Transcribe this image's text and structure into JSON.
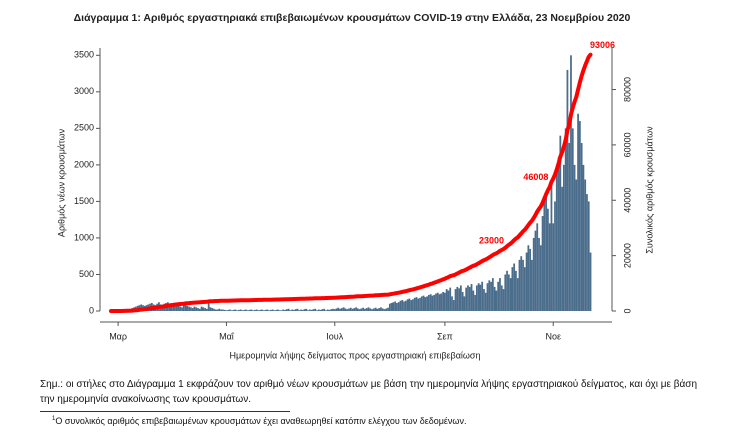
{
  "chart_data": {
    "type": "bar",
    "title": "Διάγραμμα 1: Αριθμός εργαστηριακά επιβεβαιωμένων κρουσμάτων COVID-19 στην Ελλάδα, 23 Νοεμβρίου 2020",
    "xlabel": "Ημερομηνία λήψης δείγματος προς εργαστηριακή επιβεβαίωση",
    "ylabel": "Αριθμός νέων κρουσμάτων",
    "y2label": "Συνολικός αριθμός κρουσμάτων",
    "categories": [
      null,
      null,
      null,
      null,
      "Μαρ",
      null,
      null,
      null,
      null,
      null,
      null,
      null,
      null,
      null,
      null,
      null,
      null,
      null,
      null,
      null,
      null,
      null,
      null,
      null,
      null,
      null,
      null,
      null,
      null,
      null,
      null,
      null,
      null,
      null,
      null,
      null,
      null,
      null,
      null,
      null,
      null,
      null,
      null,
      null,
      null,
      null,
      null,
      null,
      null,
      null,
      null,
      null,
      null,
      null,
      null,
      null,
      null,
      null,
      null,
      null,
      null,
      null,
      null,
      null,
      null,
      "Μαΐ",
      null,
      null,
      null,
      null,
      null,
      null,
      null,
      null,
      null,
      null,
      null,
      null,
      null,
      null,
      null,
      null,
      null,
      null,
      null,
      null,
      null,
      null,
      null,
      null,
      null,
      null,
      null,
      null,
      null,
      null,
      null,
      null,
      null,
      null,
      null,
      null,
      null,
      null,
      null,
      null,
      null,
      null,
      null,
      null,
      null,
      null,
      null,
      null,
      null,
      null,
      null,
      null,
      null,
      null,
      null,
      null,
      null,
      null,
      null,
      null,
      "Ιουλ",
      null,
      null,
      null,
      null,
      null,
      null,
      null,
      null,
      null,
      null,
      null,
      null,
      null,
      null,
      null,
      null,
      null,
      null,
      null,
      null,
      null,
      null,
      null,
      null,
      null,
      null,
      null,
      null,
      null,
      null,
      null,
      null,
      null,
      null,
      null,
      null,
      null,
      null,
      null,
      null,
      null,
      null,
      null,
      null,
      null,
      null,
      null,
      null,
      null,
      null,
      null,
      null,
      null,
      null,
      null,
      null,
      null,
      null,
      null,
      null,
      null,
      "Σεπ",
      null,
      null,
      null,
      null,
      null,
      null,
      null,
      null,
      null,
      null,
      null,
      null,
      null,
      null,
      null,
      null,
      null,
      null,
      null,
      null,
      null,
      null,
      null,
      null,
      null,
      null,
      null,
      null,
      null,
      null,
      null,
      null,
      null,
      null,
      null,
      null,
      null,
      null,
      null,
      null,
      null,
      null,
      null,
      null,
      null,
      null,
      null,
      null,
      null,
      null,
      null,
      null,
      null,
      null,
      null,
      null,
      null,
      null,
      null,
      null,
      "Νοε",
      null,
      null,
      null,
      null,
      null,
      null,
      null,
      null,
      null,
      null,
      null,
      null,
      null,
      null,
      null,
      null,
      null,
      null,
      null,
      null,
      null
    ],
    "values": [
      1,
      2,
      0,
      4,
      2,
      3,
      5,
      10,
      15,
      20,
      25,
      30,
      40,
      50,
      60,
      70,
      80,
      90,
      80,
      70,
      80,
      90,
      100,
      110,
      90,
      80,
      100,
      120,
      90,
      80,
      100,
      110,
      120,
      100,
      90,
      100,
      90,
      80,
      70,
      60,
      50,
      80,
      90,
      70,
      60,
      50,
      40,
      60,
      50,
      40,
      30,
      60,
      50,
      40,
      30,
      150,
      50,
      40,
      30,
      20,
      20,
      30,
      20,
      20,
      15,
      10,
      15,
      20,
      10,
      15,
      20,
      10,
      15,
      20,
      10,
      15,
      20,
      10,
      15,
      20,
      10,
      15,
      20,
      10,
      15,
      20,
      10,
      15,
      20,
      10,
      15,
      20,
      10,
      15,
      20,
      10,
      10,
      20,
      15,
      25,
      30,
      10,
      20,
      15,
      25,
      30,
      10,
      20,
      15,
      25,
      30,
      10,
      20,
      15,
      25,
      30,
      10,
      20,
      15,
      25,
      30,
      10,
      20,
      15,
      25,
      30,
      25,
      35,
      45,
      30,
      40,
      50,
      35,
      25,
      35,
      45,
      30,
      40,
      50,
      35,
      25,
      35,
      45,
      30,
      40,
      50,
      35,
      25,
      35,
      45,
      30,
      40,
      50,
      35,
      25,
      35,
      45,
      100,
      110,
      120,
      130,
      110,
      120,
      140,
      150,
      130,
      140,
      160,
      170,
      150,
      160,
      180,
      190,
      170,
      180,
      200,
      210,
      190,
      200,
      220,
      230,
      210,
      220,
      240,
      250,
      230,
      240,
      260,
      250,
      300,
      280,
      320,
      200,
      150,
      300,
      330,
      310,
      350,
      260,
      200,
      320,
      350,
      330,
      370,
      280,
      220,
      350,
      380,
      360,
      400,
      300,
      250,
      380,
      420,
      400,
      450,
      330,
      280,
      400,
      450,
      350,
      300,
      500,
      550,
      500,
      450,
      600,
      650,
      550,
      450,
      700,
      750,
      700,
      600,
      800,
      900,
      850,
      700,
      1000,
      1100,
      1200,
      1000,
      900,
      1300,
      1500,
      1600,
      1400,
      1200,
      1800,
      1200,
      1500,
      1900,
      2100,
      2400,
      1700,
      2000,
      2500,
      3300,
      2300,
      3500,
      2500,
      2000,
      1800,
      2700,
      2600,
      2300,
      2000,
      1800,
      1600,
      1500,
      800
    ],
    "color": "#4b6d8c",
    "cumulative_color": "#ff0000",
    "ylim": [
      0,
      3600
    ],
    "yticks": [
      0,
      500,
      1000,
      1500,
      2000,
      2500,
      3000,
      3500
    ],
    "y2lim": [
      0,
      95000
    ],
    "y2ticks": [
      0,
      20000,
      40000,
      60000,
      80000
    ],
    "annotations": [
      {
        "value": 23000,
        "label": "23000"
      },
      {
        "value": 46008,
        "label": "46008"
      },
      {
        "value": 93006,
        "label": "93006"
      }
    ]
  },
  "notes": {
    "text": "Σημ.: οι στήλες στο Διάγραμμα 1 εκφράζουν τον αριθμό νέων κρουσμάτων με βάση την ημερομηνία λήψης εργαστηριακού δείγματος, και όχι με βάση την ημερομηνία ανακοίνωσης των κρουσμάτων.",
    "footnote_mark": "1",
    "footnote": "Ο συνολικός αριθμός επιβεβαιωμένων κρουσμάτων έχει αναθεωρηθεί κατόπιν ελέγχου των δεδομένων."
  }
}
